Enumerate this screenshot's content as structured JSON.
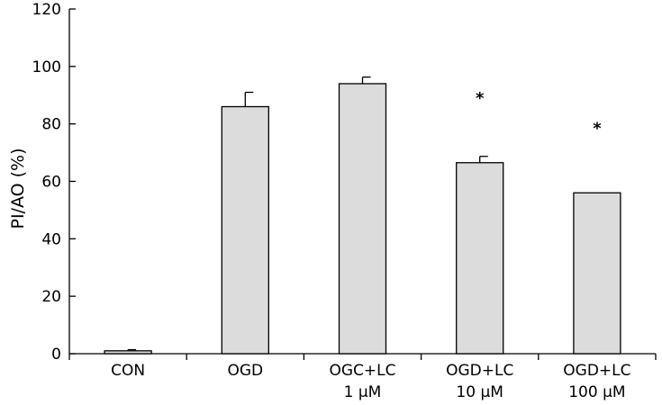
{
  "chart_data": {
    "type": "bar",
    "title": "",
    "xlabel": "",
    "ylabel": "PI/AO (%)",
    "ylim": [
      0,
      120
    ],
    "yticks": [
      0,
      20,
      40,
      60,
      80,
      100,
      120
    ],
    "grid": false,
    "bar_color": "#dcdcdc",
    "categories": [
      [
        "CON"
      ],
      [
        "OGD"
      ],
      [
        "OGC+LC",
        "1 μM"
      ],
      [
        "OGD+LC",
        "10 μM"
      ],
      [
        "OGD+LC",
        "100 μM"
      ]
    ],
    "values": [
      1,
      86,
      94,
      66.5,
      56
    ],
    "errors": [
      0.4,
      5,
      2.3,
      2.2,
      0
    ],
    "annotations": [
      "",
      "",
      "",
      "*",
      "*"
    ]
  }
}
